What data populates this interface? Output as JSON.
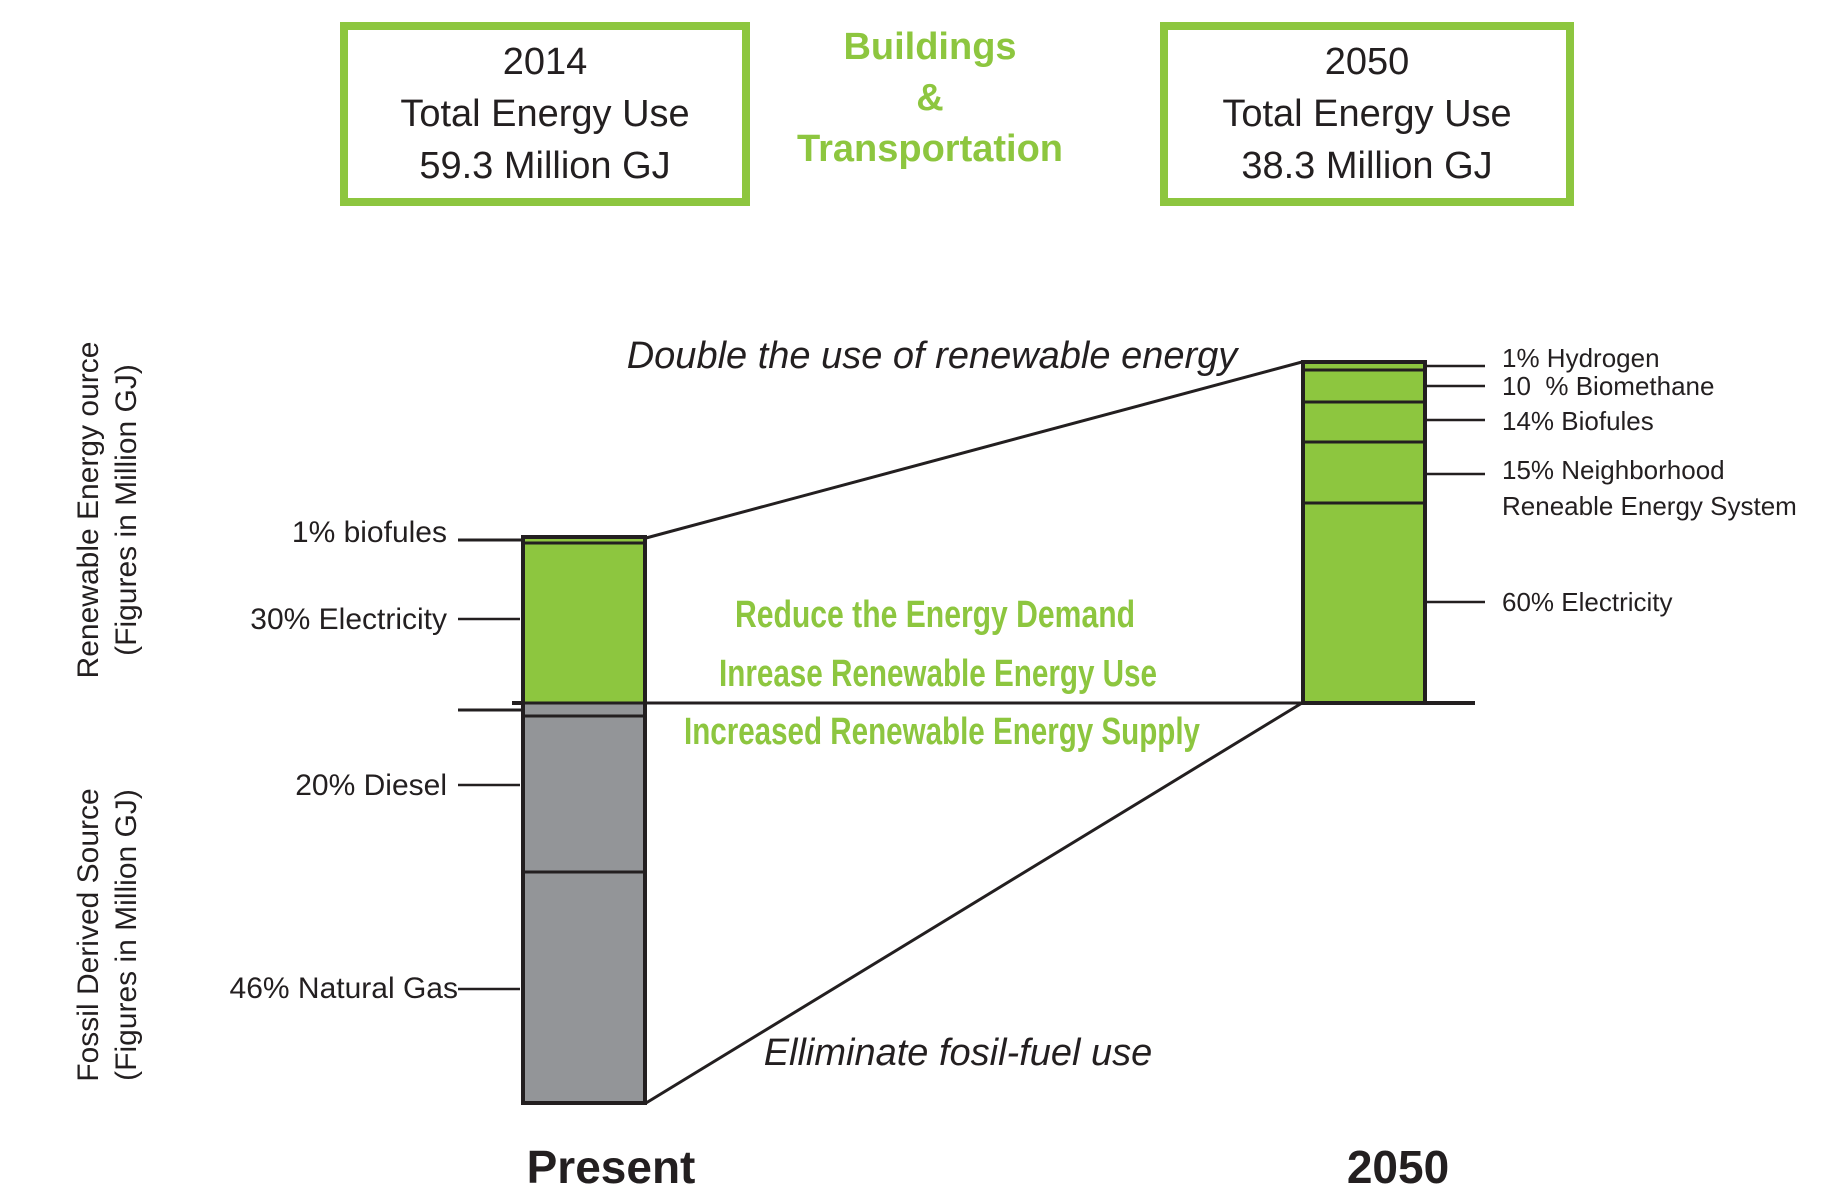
{
  "header": {
    "left_box": {
      "lines": [
        "2014",
        "Total Energy Use",
        "59.3 Million GJ"
      ]
    },
    "center_title": [
      "Buildings",
      "&",
      "Transportation"
    ],
    "right_box": {
      "lines": [
        "2050",
        "Total Energy Use",
        "38.3 Million GJ"
      ]
    }
  },
  "axis_titles": {
    "renewable": [
      "Renewable Energy ource",
      "(Figures in Million GJ)"
    ],
    "fossil": [
      "Fossil Derived Source",
      "(Figures in Million GJ)"
    ]
  },
  "present_bar": {
    "label": "Present",
    "segments": [
      {
        "label": "1% biofules",
        "percent": 1,
        "type": "renewable"
      },
      {
        "label": "30% Electricity",
        "percent": 30,
        "type": "renewable"
      },
      {
        "label": "",
        "percent": 3,
        "type": "fossil"
      },
      {
        "label": "20% Diesel",
        "percent": 20,
        "type": "fossil"
      },
      {
        "label": "46% Natural Gas",
        "percent": 46,
        "type": "fossil"
      }
    ]
  },
  "future_bar": {
    "label": "2050",
    "segments": [
      {
        "label": "1% Hydrogen",
        "percent": 1
      },
      {
        "label": "10  % Biomethane",
        "percent": 10
      },
      {
        "label": "14% Biofules",
        "percent": 14
      },
      {
        "label": "15% Neighborhood Reneable Energy System",
        "percent": 15
      },
      {
        "label": "60% Electricity",
        "percent": 60
      }
    ]
  },
  "annotations": {
    "double": "Double the use of renewable energy",
    "eliminate": "Elliminate fosil-fuel use",
    "center": [
      "Reduce the Energy Demand",
      "Inrease Renewable Energy Use",
      "Increased Renewable Energy Supply"
    ]
  },
  "colors": {
    "green": "#8dc63f",
    "gray": "#939598",
    "line": "#231f20"
  }
}
